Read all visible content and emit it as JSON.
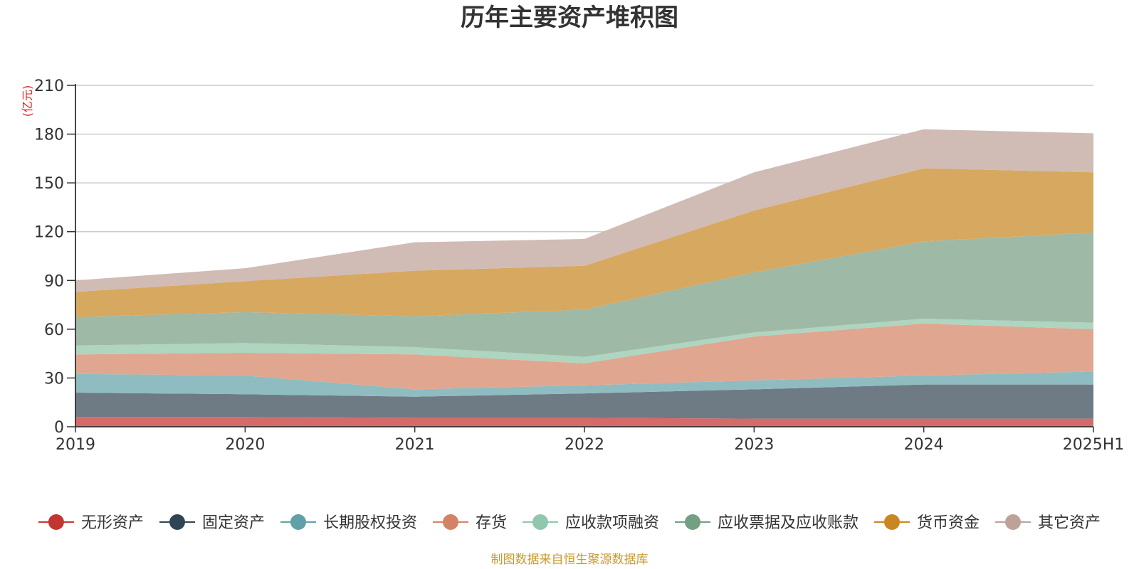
{
  "chart_data": {
    "type": "area",
    "stacked": true,
    "title": "历年主要资产堆积图",
    "unit": "(亿元)",
    "source": "制图数据来自恒生聚源数据库",
    "x": [
      "2019",
      "2020",
      "2021",
      "2022",
      "2023",
      "2024",
      "2025H1"
    ],
    "ylim": [
      0,
      210
    ],
    "yticks": [
      0,
      30,
      60,
      90,
      120,
      150,
      180,
      210
    ],
    "grid": true,
    "legend_position": "bottom",
    "series": [
      {
        "name": "无形资产",
        "color": "#c23531",
        "fill": "#d46a6a",
        "values": [
          6,
          6,
          5.5,
          5.5,
          5,
          5,
          5
        ]
      },
      {
        "name": "固定资产",
        "color": "#2f4554",
        "fill": "#6e7b85",
        "values": [
          15,
          14,
          13,
          15,
          18,
          21,
          21
        ]
      },
      {
        "name": "长期股权投资",
        "color": "#61a0a8",
        "fill": "#8fbcc0",
        "values": [
          11.5,
          11.5,
          4.5,
          5,
          5.5,
          5.5,
          8
        ]
      },
      {
        "name": "存货",
        "color": "#d48265",
        "fill": "#e0a690",
        "values": [
          12,
          14,
          21.5,
          13.5,
          27,
          32,
          26
        ]
      },
      {
        "name": "应收款项融资",
        "color": "#91c7ae",
        "fill": "#add5c0",
        "values": [
          5.5,
          6,
          4.5,
          4,
          2.5,
          3,
          4
        ]
      },
      {
        "name": "应收票据及应收账款",
        "color": "#749f83",
        "fill": "#9eb9a6",
        "values": [
          17.5,
          19,
          19,
          29,
          37,
          47.5,
          55.5
        ]
      },
      {
        "name": "货币资金",
        "color": "#ca8622",
        "fill": "#d7a85f",
        "values": [
          15.5,
          19,
          28,
          27,
          38,
          45,
          37
        ]
      },
      {
        "name": "其它资产",
        "color": "#bda29a",
        "fill": "#d0bbb5",
        "values": [
          7,
          8,
          17.5,
          16.5,
          23.5,
          24,
          24
        ]
      }
    ]
  }
}
